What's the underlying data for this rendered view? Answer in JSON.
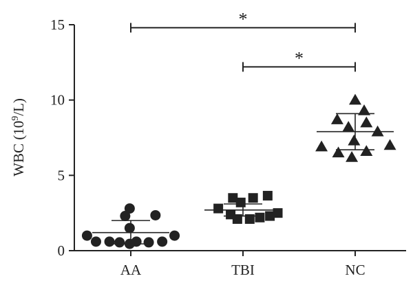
{
  "chart_data": {
    "type": "scatter",
    "ylabel": {
      "main": "WBC (10",
      "sup": "9",
      "tail": "/L)"
    },
    "ylim": [
      0,
      15
    ],
    "yticks": [
      0,
      5,
      10,
      15
    ],
    "categories": [
      "AA",
      "TBI",
      "NC"
    ],
    "groups": [
      {
        "name": "AA",
        "marker": "circle",
        "mean": 1.2,
        "sd_upper": 2.0,
        "sd_lower": 0.45,
        "points": [
          {
            "offset": -0.05,
            "y": 2.3
          },
          {
            "offset": -0.01,
            "y": 2.8
          },
          {
            "offset": 0.22,
            "y": 2.35
          },
          {
            "offset": -0.01,
            "y": 1.5
          },
          {
            "offset": -0.39,
            "y": 1.0
          },
          {
            "offset": 0.39,
            "y": 1.0
          },
          {
            "offset": -0.31,
            "y": 0.6
          },
          {
            "offset": -0.19,
            "y": 0.6
          },
          {
            "offset": -0.1,
            "y": 0.55
          },
          {
            "offset": 0.05,
            "y": 0.6
          },
          {
            "offset": 0.16,
            "y": 0.55
          },
          {
            "offset": 0.28,
            "y": 0.6
          },
          {
            "offset": -0.01,
            "y": 0.45
          }
        ]
      },
      {
        "name": "TBI",
        "marker": "square",
        "mean": 2.7,
        "sd_upper": 3.1,
        "sd_lower": 2.3,
        "points": [
          {
            "offset": -0.09,
            "y": 3.5
          },
          {
            "offset": 0.09,
            "y": 3.5
          },
          {
            "offset": 0.22,
            "y": 3.65
          },
          {
            "offset": -0.02,
            "y": 3.2
          },
          {
            "offset": -0.22,
            "y": 2.8
          },
          {
            "offset": -0.11,
            "y": 2.4
          },
          {
            "offset": 0.31,
            "y": 2.5
          },
          {
            "offset": -0.05,
            "y": 2.1
          },
          {
            "offset": 0.06,
            "y": 2.1
          },
          {
            "offset": 0.15,
            "y": 2.2
          },
          {
            "offset": 0.24,
            "y": 2.3
          }
        ]
      },
      {
        "name": "NC",
        "marker": "triangle",
        "mean": 7.9,
        "sd_upper": 9.1,
        "sd_lower": 6.7,
        "points": [
          {
            "offset": 0.0,
            "y": 10.0
          },
          {
            "offset": 0.08,
            "y": 9.3
          },
          {
            "offset": -0.16,
            "y": 8.7
          },
          {
            "offset": 0.1,
            "y": 8.5
          },
          {
            "offset": -0.06,
            "y": 8.2
          },
          {
            "offset": 0.2,
            "y": 7.9
          },
          {
            "offset": -0.01,
            "y": 7.3
          },
          {
            "offset": -0.3,
            "y": 6.9
          },
          {
            "offset": 0.31,
            "y": 7.0
          },
          {
            "offset": -0.15,
            "y": 6.5
          },
          {
            "offset": 0.1,
            "y": 6.6
          },
          {
            "offset": -0.03,
            "y": 6.2
          }
        ]
      }
    ],
    "annotations": [
      {
        "from": "AA",
        "to": "NC",
        "y": 14.8,
        "label": "*"
      },
      {
        "from": "TBI",
        "to": "NC",
        "y": 12.2,
        "label": "*"
      }
    ]
  }
}
